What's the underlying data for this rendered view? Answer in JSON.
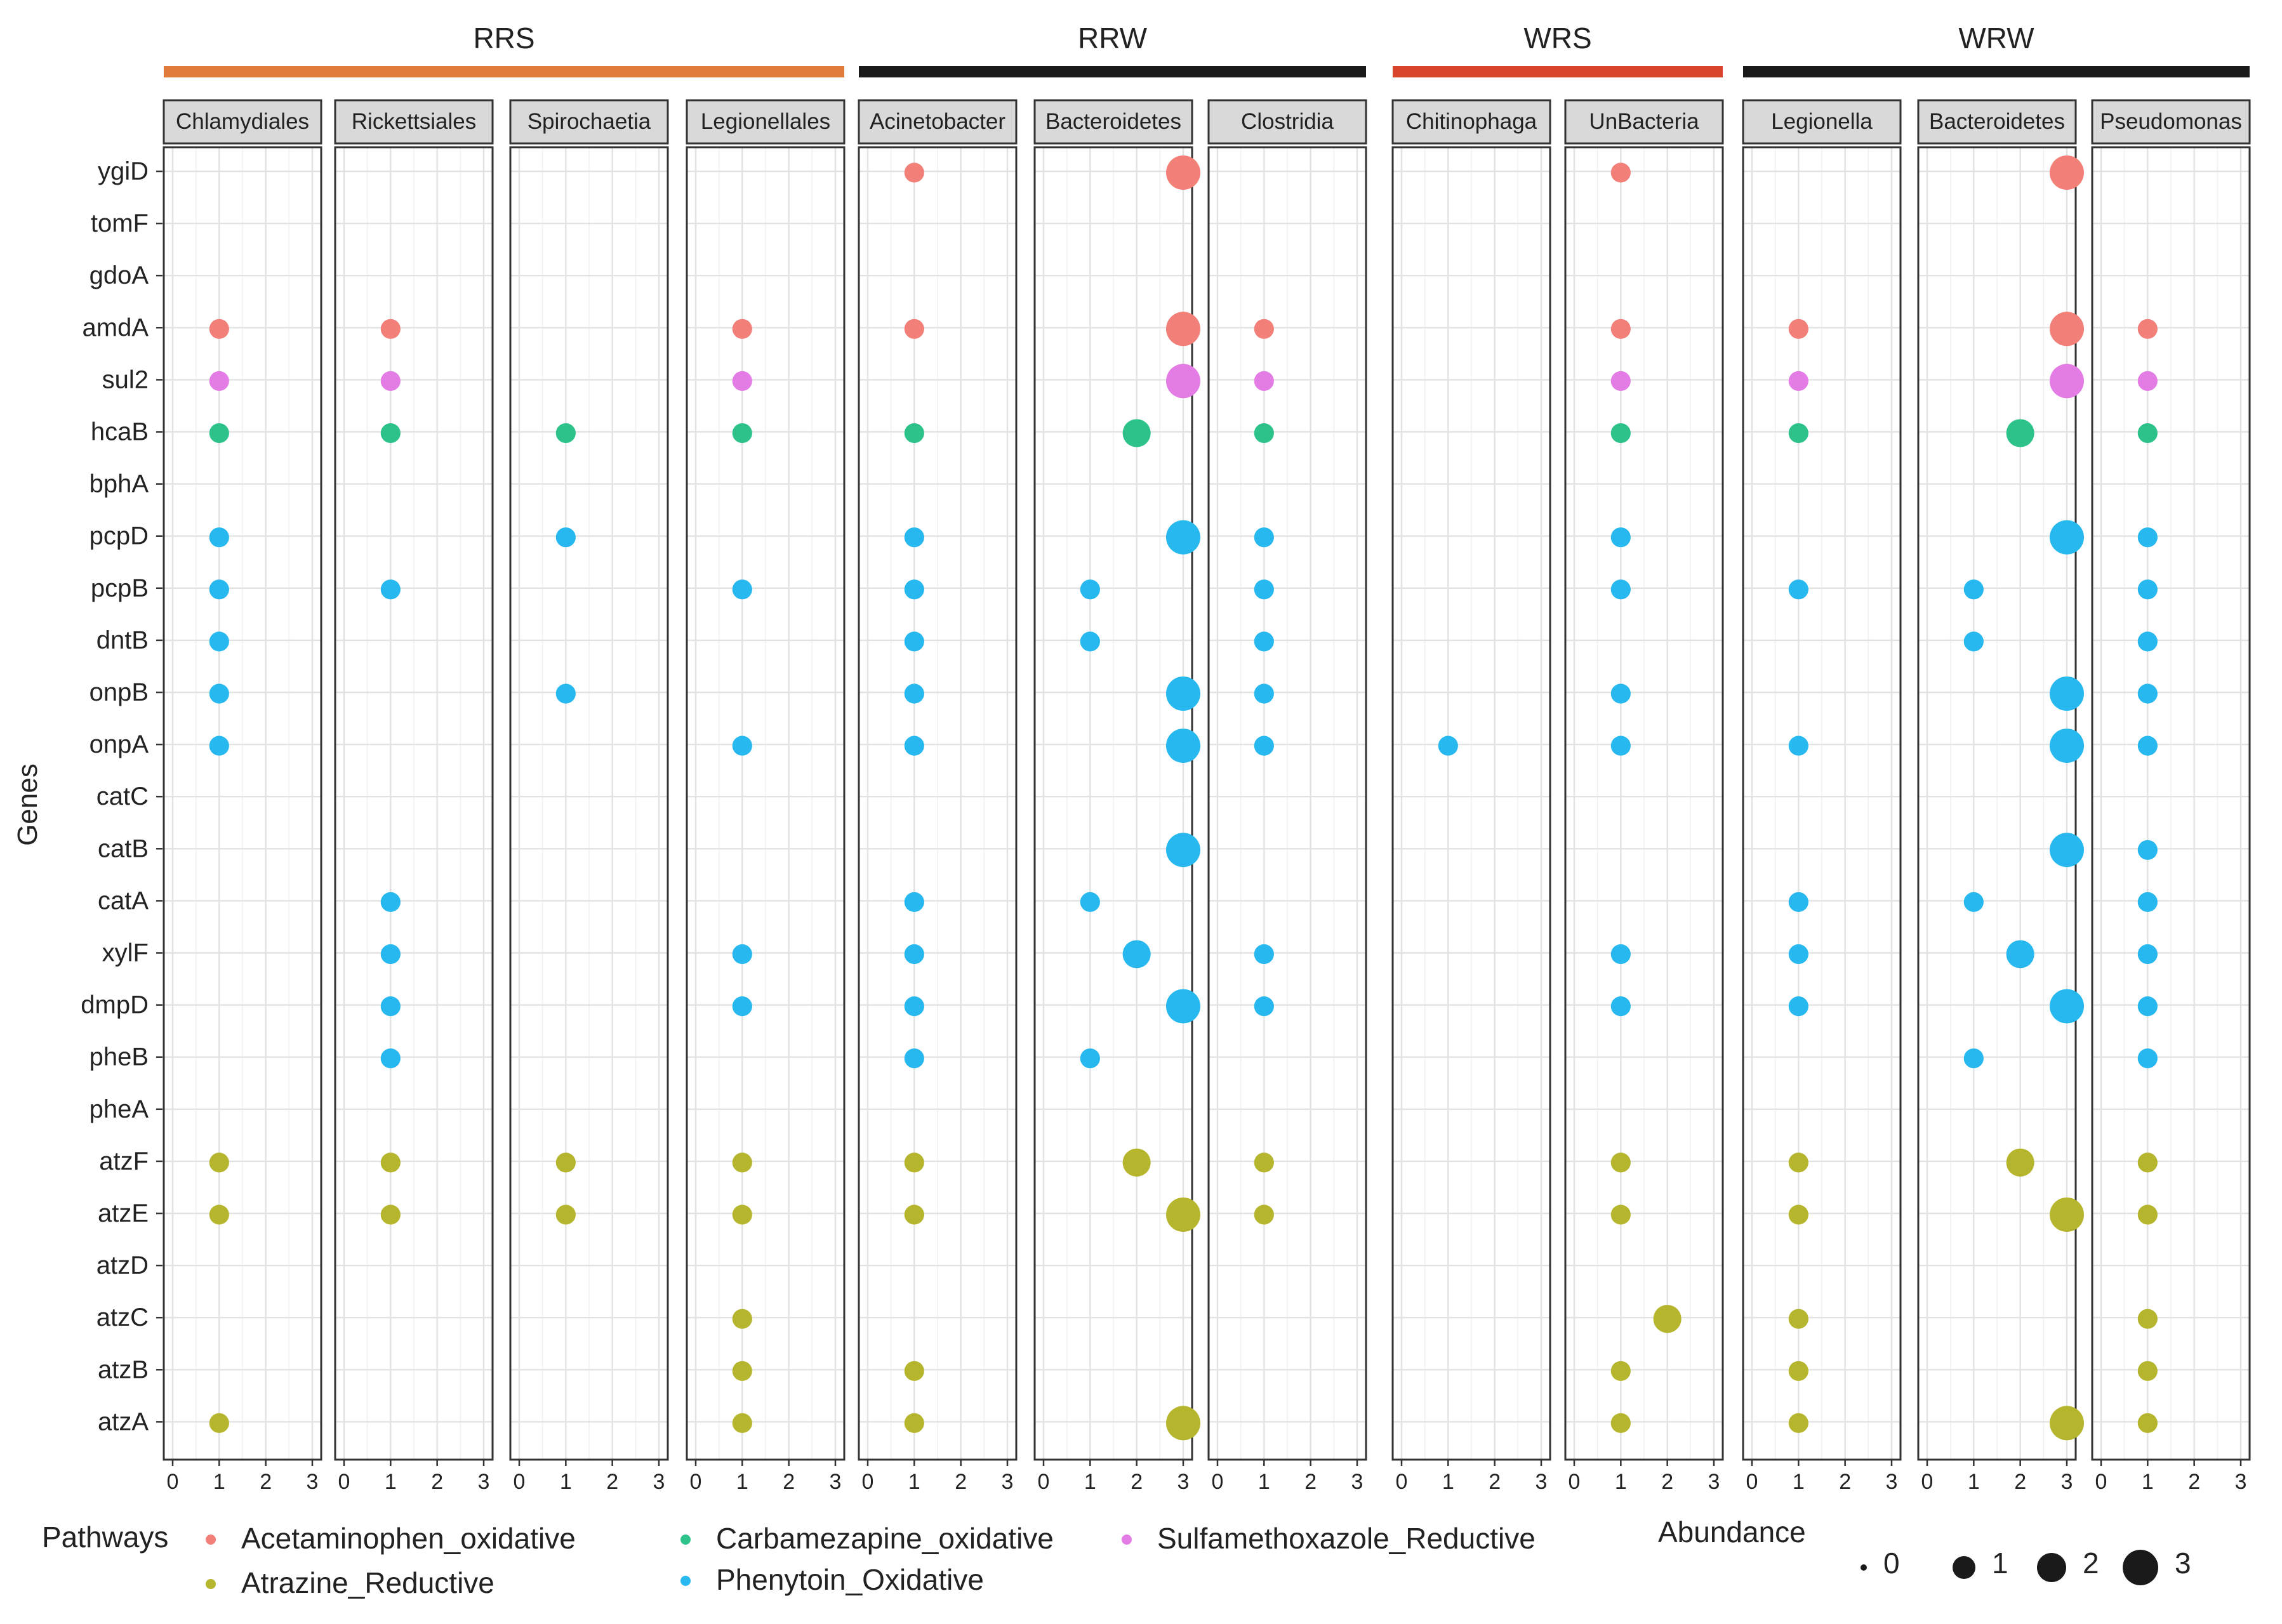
{
  "chart_data": {
    "type": "scatter",
    "ylabel": "Genes",
    "genes": [
      "ygiD",
      "tomF",
      "gdoA",
      "amdA",
      "sul2",
      "hcaB",
      "bphA",
      "pcpD",
      "pcpB",
      "dntB",
      "onpB",
      "onpA",
      "catC",
      "catB",
      "catA",
      "xylF",
      "dmpD",
      "pheB",
      "pheA",
      "atzF",
      "atzE",
      "atzD",
      "atzC",
      "atzB",
      "atzA"
    ],
    "x_ticks": [
      "0",
      "1",
      "2",
      "3"
    ],
    "xlim": [
      0,
      3
    ],
    "groups": [
      {
        "name": "RRS",
        "color": "#E07B39",
        "panels": [
          0,
          1,
          2,
          3
        ]
      },
      {
        "name": "RRW",
        "color": "#1A1A1A",
        "panels": [
          4,
          5,
          6
        ]
      },
      {
        "name": "WRS",
        "color": "#D9442C",
        "panels": [
          7,
          8
        ]
      },
      {
        "name": "WRW",
        "color": "#1A1A1A",
        "panels": [
          9,
          10,
          11
        ]
      }
    ],
    "pathways": [
      {
        "name": "Acetaminophen_oxidative",
        "color": "#F28079"
      },
      {
        "name": "Atrazine_Reductive",
        "color": "#B5B52E"
      },
      {
        "name": "Carbamezapine_oxidative",
        "color": "#2DC28A"
      },
      {
        "name": "Phenytoin_Oxidative",
        "color": "#26B8EE"
      },
      {
        "name": "Sulfamethoxazole_Reductive",
        "color": "#E47CE6"
      }
    ],
    "gene_pathway": {
      "ygiD": 0,
      "tomF": 0,
      "gdoA": 0,
      "amdA": 0,
      "sul2": 4,
      "hcaB": 2,
      "bphA": 3,
      "pcpD": 3,
      "pcpB": 3,
      "dntB": 3,
      "onpB": 3,
      "onpA": 3,
      "catC": 3,
      "catB": 3,
      "catA": 3,
      "xylF": 3,
      "dmpD": 3,
      "pheB": 3,
      "pheA": 3,
      "atzF": 1,
      "atzE": 1,
      "atzD": 1,
      "atzC": 1,
      "atzB": 1,
      "atzA": 1
    },
    "panels": [
      {
        "name": "Chlamydiales",
        "points": {
          "amdA": 1,
          "sul2": 1,
          "hcaB": 1,
          "pcpD": 1,
          "pcpB": 1,
          "dntB": 1,
          "onpB": 1,
          "onpA": 1,
          "atzF": 1,
          "atzE": 1,
          "atzA": 1
        }
      },
      {
        "name": "Rickettsiales",
        "points": {
          "amdA": 1,
          "sul2": 1,
          "hcaB": 1,
          "pcpB": 1,
          "catA": 1,
          "xylF": 1,
          "dmpD": 1,
          "pheB": 1,
          "atzF": 1,
          "atzE": 1
        }
      },
      {
        "name": "Spirochaetia",
        "points": {
          "hcaB": 1,
          "pcpD": 1,
          "onpB": 1,
          "atzF": 1,
          "atzE": 1
        }
      },
      {
        "name": "Legionellales",
        "points": {
          "amdA": 1,
          "sul2": 1,
          "hcaB": 1,
          "pcpB": 1,
          "onpA": 1,
          "xylF": 1,
          "dmpD": 1,
          "atzF": 1,
          "atzE": 1,
          "atzC": 1,
          "atzB": 1,
          "atzA": 1
        }
      },
      {
        "name": "Acinetobacter",
        "points": {
          "ygiD": 1,
          "amdA": 1,
          "hcaB": 1,
          "pcpD": 1,
          "pcpB": 1,
          "dntB": 1,
          "onpB": 1,
          "onpA": 1,
          "catA": 1,
          "xylF": 1,
          "dmpD": 1,
          "pheB": 1,
          "atzF": 1,
          "atzE": 1,
          "atzB": 1,
          "atzA": 1
        }
      },
      {
        "name": "Bacteroidetes",
        "points": {
          "ygiD": 3,
          "amdA": 3,
          "sul2": 3,
          "hcaB": 2,
          "pcpD": 3,
          "pcpB": 1,
          "dntB": 1,
          "onpB": 3,
          "onpA": 3,
          "catB": 3,
          "catA": 1,
          "xylF": 2,
          "dmpD": 3,
          "pheB": 1,
          "atzF": 2,
          "atzE": 3,
          "atzA": 3
        }
      },
      {
        "name": "Clostridia",
        "points": {
          "amdA": 1,
          "sul2": 1,
          "hcaB": 1,
          "pcpD": 1,
          "pcpB": 1,
          "dntB": 1,
          "onpB": 1,
          "onpA": 1,
          "xylF": 1,
          "dmpD": 1,
          "atzF": 1,
          "atzE": 1
        }
      },
      {
        "name": "Chitinophaga",
        "points": {
          "onpA": 1
        }
      },
      {
        "name": "UnBacteria",
        "points": {
          "ygiD": 1,
          "amdA": 1,
          "sul2": 1,
          "hcaB": 1,
          "pcpD": 1,
          "pcpB": 1,
          "onpB": 1,
          "onpA": 1,
          "xylF": 1,
          "dmpD": 1,
          "atzF": 1,
          "atzE": 1,
          "atzC": 2,
          "atzB": 1,
          "atzA": 1
        }
      },
      {
        "name": "Legionella",
        "points": {
          "amdA": 1,
          "sul2": 1,
          "hcaB": 1,
          "pcpB": 1,
          "onpA": 1,
          "catA": 1,
          "xylF": 1,
          "dmpD": 1,
          "atzF": 1,
          "atzE": 1,
          "atzC": 1,
          "atzB": 1,
          "atzA": 1
        }
      },
      {
        "name": "Bacteroidetes",
        "points": {
          "ygiD": 3,
          "amdA": 3,
          "sul2": 3,
          "hcaB": 2,
          "pcpD": 3,
          "pcpB": 1,
          "dntB": 1,
          "onpB": 3,
          "onpA": 3,
          "catB": 3,
          "catA": 1,
          "xylF": 2,
          "dmpD": 3,
          "pheB": 1,
          "atzF": 2,
          "atzE": 3,
          "atzA": 3
        }
      },
      {
        "name": "Pseudomonas",
        "points": {
          "amdA": 1,
          "sul2": 1,
          "hcaB": 1,
          "pcpD": 1,
          "pcpB": 1,
          "dntB": 1,
          "onpB": 1,
          "onpA": 1,
          "catB": 1,
          "catA": 1,
          "xylF": 1,
          "dmpD": 1,
          "pheB": 1,
          "atzF": 1,
          "atzE": 1,
          "atzC": 1,
          "atzB": 1,
          "atzA": 1
        }
      }
    ],
    "legend": {
      "pathways_title": "Pathways",
      "abundance_title": "Abundance",
      "abundance_levels": [
        0,
        1,
        2,
        3
      ],
      "abundance_labels": [
        "0",
        "1",
        "2",
        "3"
      ]
    }
  }
}
